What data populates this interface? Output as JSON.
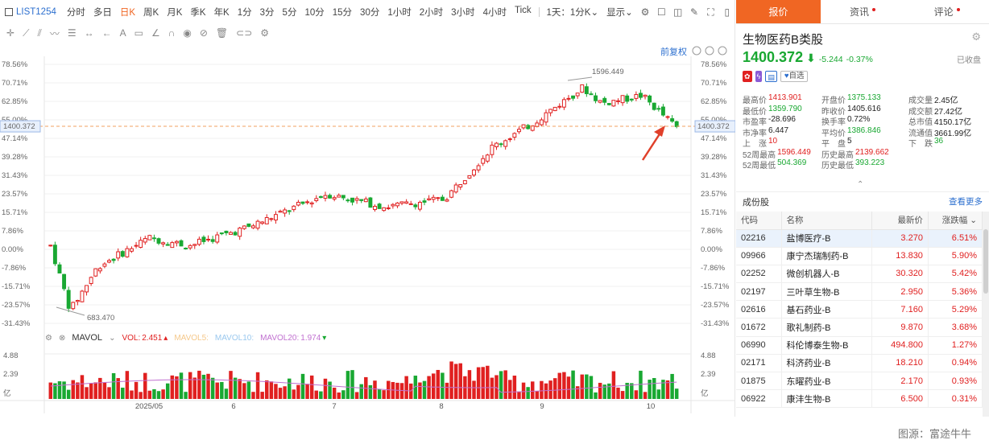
{
  "toolbar": {
    "symbol": "LIST1254",
    "periods": [
      "分时",
      "多日",
      "日K",
      "周K",
      "月K",
      "季K",
      "年K",
      "1分",
      "3分",
      "5分",
      "10分",
      "15分",
      "30分",
      "1小时",
      "2小时",
      "3小时",
      "4小时",
      "Tick"
    ],
    "active_period": "日K",
    "interval_select": "1天：1分K",
    "display_select": "显示",
    "adjust_label": "前复权"
  },
  "chart": {
    "price_ticks": [
      "78.56%",
      "70.71%",
      "62.85%",
      "55.00%",
      "47.14%",
      "39.28%",
      "31.43%",
      "23.57%",
      "15.71%",
      "7.86%",
      "0.00%",
      "-7.86%",
      "-15.71%",
      "-23.57%",
      "-31.43%"
    ],
    "current_price_tag": "1400.372",
    "high_label": "1596.449",
    "low_label": "683.470",
    "x_labels": [
      "2025/05",
      "6",
      "7",
      "8",
      "9",
      "10"
    ],
    "volume_ticks": [
      "4.88",
      "2.39",
      "亿"
    ],
    "colors": {
      "up": "#e02020",
      "down": "#19a832",
      "dash": "#f0a060",
      "ma": "#c070d0"
    }
  },
  "mavol": {
    "title": "MAVOL",
    "vol_label": "VOL:",
    "vol_value": "2.451",
    "ma5": "MAVOL5:",
    "ma10": "MAVOL10:",
    "ma20": "MAVOL20:",
    "ma20_value": "1.974"
  },
  "panel": {
    "tabs": [
      "报价",
      "资讯",
      "评论"
    ],
    "name": "生物医药B类股",
    "price": "1400.372",
    "change": "-5.244",
    "change_pct": "-0.37%",
    "status": "已收盘",
    "fav_label": "自选",
    "stats": [
      [
        [
          "最高价",
          "1413.901",
          "red"
        ],
        [
          "开盘价",
          "1375.133",
          "grn"
        ],
        [
          "成交量",
          "2.45亿",
          ""
        ]
      ],
      [
        [
          "最低价",
          "1359.790",
          "grn"
        ],
        [
          "昨收价",
          "1405.616",
          ""
        ],
        [
          "成交额",
          "27.42亿",
          ""
        ]
      ],
      [
        [
          "市盈率",
          "-28.696",
          ""
        ],
        [
          "换手率",
          "0.72%",
          ""
        ],
        [
          "总市值",
          "4150.17亿",
          ""
        ]
      ],
      [
        [
          "市净率",
          "6.447",
          ""
        ],
        [
          "平均价",
          "1386.846",
          "grn"
        ],
        [
          "流通值",
          "3661.99亿",
          ""
        ]
      ],
      [
        [
          "上　涨",
          "10",
          "red"
        ],
        [
          "平　盘",
          "5",
          ""
        ],
        [
          "下　跌",
          "36",
          "grn"
        ]
      ],
      [
        [
          "52周最高",
          "1596.449",
          "red"
        ],
        [
          "历史最高",
          "2139.662",
          "red"
        ]
      ],
      [
        [
          "52周最低",
          "504.369",
          "grn"
        ],
        [
          "历史最低",
          "393.223",
          "grn"
        ]
      ]
    ],
    "holdings_title": "成份股",
    "holdings_more": "查看更多",
    "columns": [
      "代码",
      "名称",
      "最新价",
      "涨跌幅"
    ],
    "rows": [
      [
        "02216",
        "盐博医疗-B",
        "3.270",
        "6.51%"
      ],
      [
        "09966",
        "康宁杰瑞制药-B",
        "13.830",
        "5.90%"
      ],
      [
        "02252",
        "微创机器人-B",
        "30.320",
        "5.42%"
      ],
      [
        "02197",
        "三叶草生物-B",
        "2.950",
        "5.36%"
      ],
      [
        "02616",
        "基石药业-B",
        "7.160",
        "5.29%"
      ],
      [
        "01672",
        "歌礼制药-B",
        "9.870",
        "3.68%"
      ],
      [
        "06990",
        "科伦博泰生物-B",
        "494.800",
        "1.27%"
      ],
      [
        "02171",
        "科济药业-B",
        "18.210",
        "0.94%"
      ],
      [
        "01875",
        "东曜药业-B",
        "2.170",
        "0.93%"
      ],
      [
        "06922",
        "康沣生物-B",
        "6.500",
        "0.31%"
      ]
    ]
  },
  "source": "图源：富途牛牛"
}
